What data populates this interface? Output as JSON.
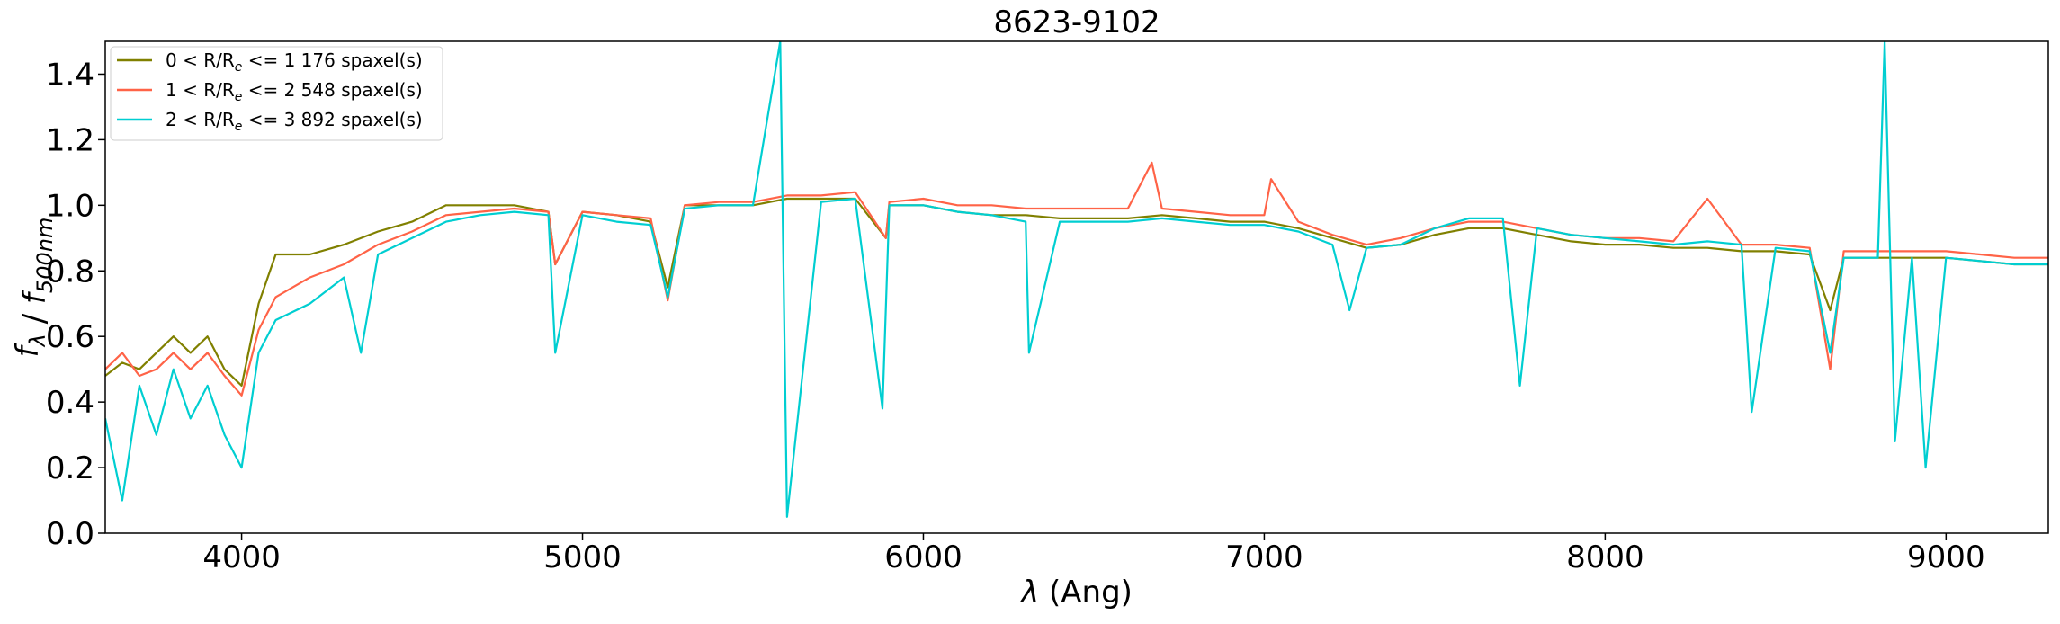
{
  "chart_data": {
    "type": "line",
    "title": "8623-9102",
    "xlabel": "λ (Ang)",
    "ylabel": "f_λ / f_500nm",
    "xlim": [
      3600,
      9300
    ],
    "ylim": [
      0.0,
      1.5
    ],
    "x_ticks": [
      4000,
      5000,
      6000,
      7000,
      8000,
      9000
    ],
    "x_tick_labels": [
      "4000",
      "5000",
      "6000",
      "7000",
      "8000",
      "9000"
    ],
    "y_ticks": [
      0.0,
      0.2,
      0.4,
      0.6,
      0.8,
      1.0,
      1.2,
      1.4
    ],
    "y_tick_labels": [
      "0.0",
      "0.2",
      "0.4",
      "0.6",
      "0.8",
      "1.0",
      "1.2",
      "1.4"
    ],
    "grid": false,
    "legend_position": "top-left",
    "series": [
      {
        "name": "0 < R/R_e <= 1 176 spaxel(s)",
        "label_parts": [
          "0 < R/R",
          "e",
          " <= 1 176 spaxel(s)"
        ],
        "color": "#808000",
        "x": [
          3600,
          3650,
          3700,
          3750,
          3800,
          3850,
          3900,
          3950,
          4000,
          4050,
          4100,
          4200,
          4300,
          4400,
          4500,
          4600,
          4700,
          4800,
          4900,
          4920,
          5000,
          5100,
          5200,
          5250,
          5300,
          5400,
          5500,
          5600,
          5700,
          5800,
          5890,
          5900,
          6000,
          6100,
          6200,
          6300,
          6400,
          6500,
          6600,
          6700,
          6800,
          6900,
          7000,
          7100,
          7200,
          7300,
          7400,
          7500,
          7600,
          7700,
          7800,
          7900,
          8000,
          8100,
          8200,
          8300,
          8400,
          8500,
          8600,
          8660,
          8700,
          8800,
          8900,
          9000,
          9100,
          9200,
          9300
        ],
        "y": [
          0.48,
          0.52,
          0.5,
          0.55,
          0.6,
          0.55,
          0.6,
          0.5,
          0.45,
          0.7,
          0.85,
          0.85,
          0.88,
          0.92,
          0.95,
          1.0,
          1.0,
          1.0,
          0.98,
          0.82,
          0.98,
          0.97,
          0.95,
          0.75,
          1.0,
          1.0,
          1.0,
          1.02,
          1.02,
          1.02,
          0.9,
          1.0,
          1.0,
          0.98,
          0.97,
          0.97,
          0.96,
          0.96,
          0.96,
          0.97,
          0.96,
          0.95,
          0.95,
          0.93,
          0.9,
          0.87,
          0.88,
          0.91,
          0.93,
          0.93,
          0.91,
          0.89,
          0.88,
          0.88,
          0.87,
          0.87,
          0.86,
          0.86,
          0.85,
          0.68,
          0.84,
          0.84,
          0.84,
          0.84,
          0.83,
          0.82,
          0.82
        ]
      },
      {
        "name": "1 < R/R_e <= 2 548 spaxel(s)",
        "label_parts": [
          "1 < R/R",
          "e",
          " <= 2 548 spaxel(s)"
        ],
        "color": "#ff6347",
        "x": [
          3600,
          3650,
          3700,
          3750,
          3800,
          3850,
          3900,
          3950,
          4000,
          4050,
          4100,
          4200,
          4300,
          4400,
          4500,
          4600,
          4700,
          4800,
          4900,
          4920,
          5000,
          5100,
          5200,
          5250,
          5300,
          5400,
          5500,
          5600,
          5700,
          5800,
          5890,
          5900,
          6000,
          6100,
          6200,
          6300,
          6400,
          6500,
          6600,
          6670,
          6700,
          6800,
          6900,
          7000,
          7020,
          7100,
          7200,
          7300,
          7400,
          7500,
          7600,
          7700,
          7800,
          7900,
          8000,
          8100,
          8200,
          8300,
          8400,
          8500,
          8600,
          8660,
          8700,
          8800,
          8900,
          9000,
          9100,
          9200,
          9300
        ],
        "y": [
          0.5,
          0.55,
          0.48,
          0.5,
          0.55,
          0.5,
          0.55,
          0.48,
          0.42,
          0.62,
          0.72,
          0.78,
          0.82,
          0.88,
          0.92,
          0.97,
          0.98,
          0.99,
          0.98,
          0.82,
          0.98,
          0.97,
          0.96,
          0.71,
          1.0,
          1.01,
          1.01,
          1.03,
          1.03,
          1.04,
          0.9,
          1.01,
          1.02,
          1.0,
          1.0,
          0.99,
          0.99,
          0.99,
          0.99,
          1.13,
          0.99,
          0.98,
          0.97,
          0.97,
          1.08,
          0.95,
          0.91,
          0.88,
          0.9,
          0.93,
          0.95,
          0.95,
          0.93,
          0.91,
          0.9,
          0.9,
          0.89,
          1.02,
          0.88,
          0.88,
          0.87,
          0.5,
          0.86,
          0.86,
          0.86,
          0.86,
          0.85,
          0.84,
          0.84
        ]
      },
      {
        "name": "2 < R/R_e <= 3 892 spaxel(s)",
        "label_parts": [
          "2 < R/R",
          "e",
          " <= 3 892 spaxel(s)"
        ],
        "color": "#00ced1",
        "x": [
          3600,
          3650,
          3700,
          3750,
          3800,
          3850,
          3900,
          3950,
          4000,
          4050,
          4100,
          4200,
          4300,
          4350,
          4400,
          4500,
          4600,
          4700,
          4800,
          4900,
          4920,
          5000,
          5100,
          5200,
          5250,
          5300,
          5400,
          5500,
          5580,
          5600,
          5700,
          5800,
          5880,
          5900,
          6000,
          6100,
          6200,
          6300,
          6310,
          6400,
          6500,
          6600,
          6700,
          6800,
          6900,
          7000,
          7100,
          7200,
          7250,
          7300,
          7400,
          7500,
          7600,
          7700,
          7750,
          7800,
          7900,
          8000,
          8100,
          8200,
          8300,
          8400,
          8430,
          8500,
          8600,
          8660,
          8700,
          8800,
          8820,
          8850,
          8900,
          8940,
          9000,
          9100,
          9200,
          9300
        ],
        "y": [
          0.35,
          0.1,
          0.45,
          0.3,
          0.5,
          0.35,
          0.45,
          0.3,
          0.2,
          0.55,
          0.65,
          0.7,
          0.78,
          0.55,
          0.85,
          0.9,
          0.95,
          0.97,
          0.98,
          0.97,
          0.55,
          0.97,
          0.95,
          0.94,
          0.72,
          0.99,
          1.0,
          1.0,
          1.5,
          0.05,
          1.01,
          1.02,
          0.38,
          1.0,
          1.0,
          0.98,
          0.97,
          0.95,
          0.55,
          0.95,
          0.95,
          0.95,
          0.96,
          0.95,
          0.94,
          0.94,
          0.92,
          0.88,
          0.68,
          0.87,
          0.88,
          0.93,
          0.96,
          0.96,
          0.45,
          0.93,
          0.91,
          0.9,
          0.89,
          0.88,
          0.89,
          0.88,
          0.37,
          0.87,
          0.86,
          0.55,
          0.84,
          0.84,
          1.5,
          0.28,
          0.84,
          0.2,
          0.84,
          0.83,
          0.82,
          0.82
        ]
      }
    ]
  }
}
